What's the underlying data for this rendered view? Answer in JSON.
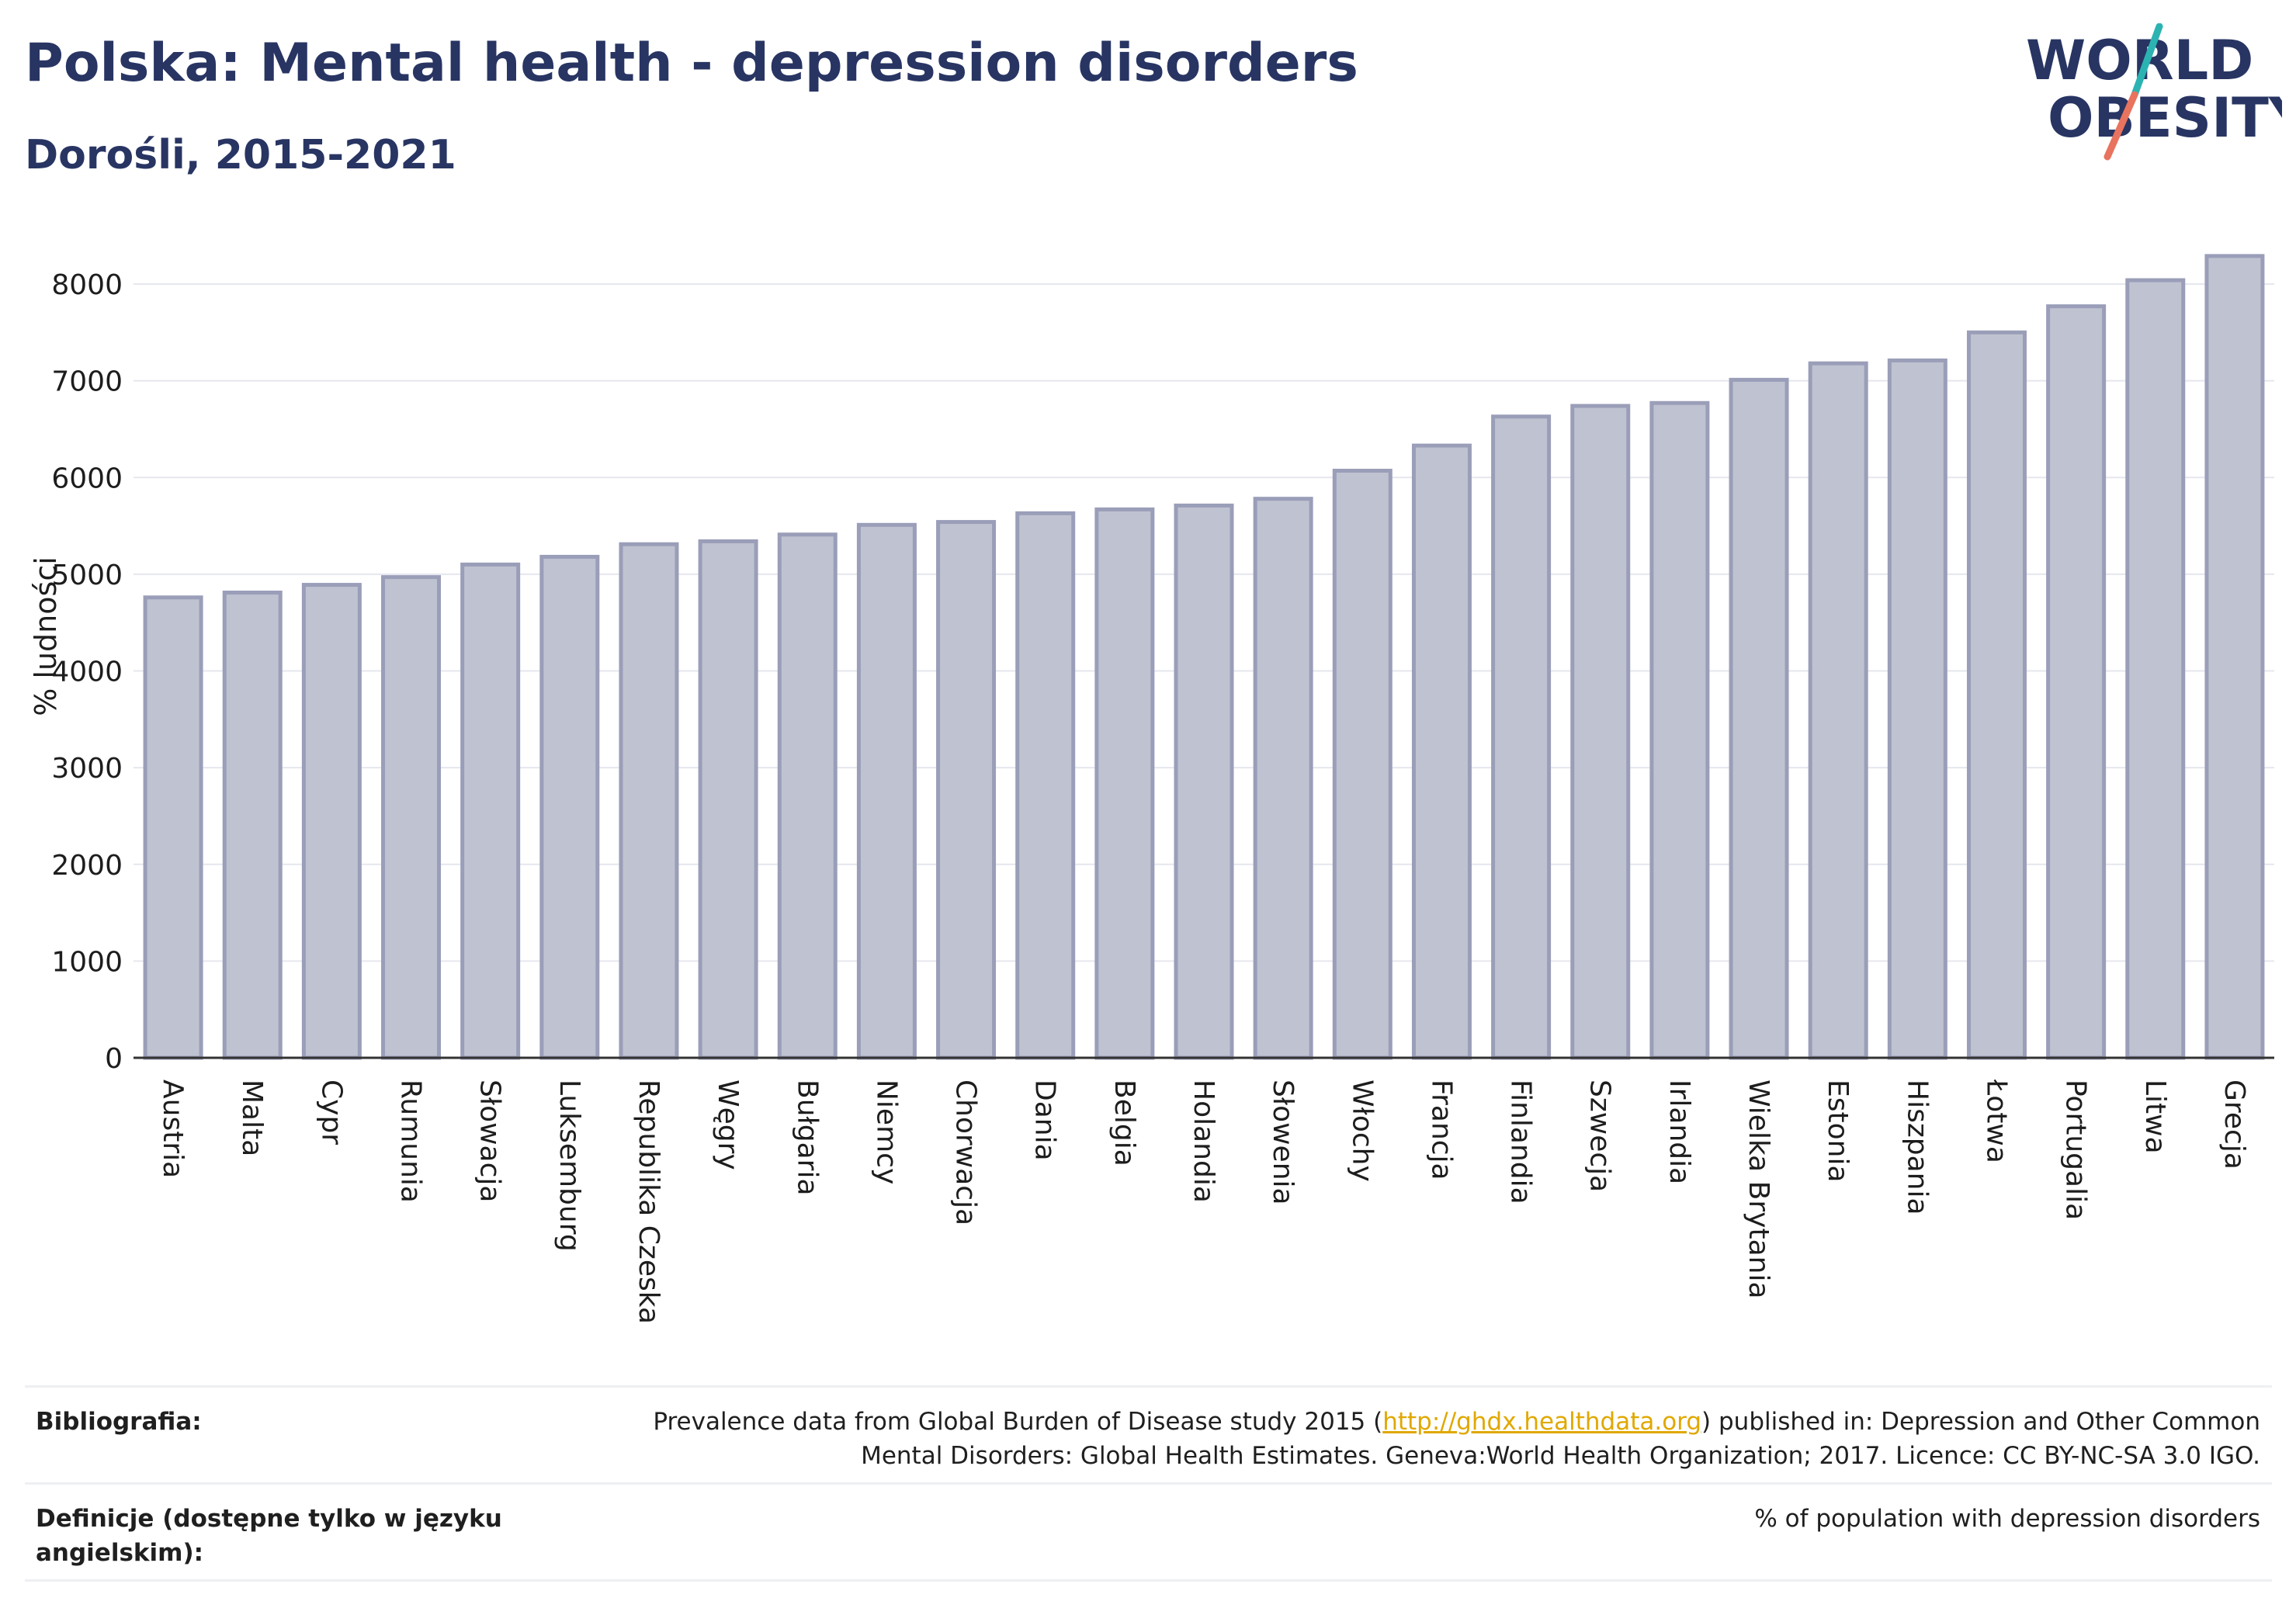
{
  "header": {
    "title": "Polska: Mental health - depression disorders",
    "subtitle": "Dorośli, 2015-2021",
    "logo_line1": "WORLD",
    "logo_line2": "OBESITY"
  },
  "chart_data": {
    "type": "bar",
    "title": "Polska: Mental health - depression disorders",
    "subtitle": "Dorośli, 2015-2021",
    "ylabel": "% ludności",
    "xlabel": "",
    "ylim": [
      0,
      8500
    ],
    "yticks": [
      "0",
      "1000",
      "2000",
      "3000",
      "4000",
      "5000",
      "6000",
      "7000",
      "8000"
    ],
    "grid": true,
    "categories": [
      "Austria",
      "Malta",
      "Cypr",
      "Rumunia",
      "Słowacja",
      "Luksemburg",
      "Republika Czeska",
      "Węgry",
      "Bułgaria",
      "Niemcy",
      "Chorwacja",
      "Dania",
      "Belgia",
      "Holandia",
      "Słowenia",
      "Włochy",
      "Francja",
      "Finlandia",
      "Szwecja",
      "Irlandia",
      "Wielka Brytania",
      "Estonia",
      "Hiszpania",
      "Łotwa",
      "Portugalia",
      "Litwa",
      "Grecja"
    ],
    "values": [
      4760,
      4810,
      4890,
      4970,
      5100,
      5180,
      5310,
      5340,
      5410,
      5510,
      5540,
      5630,
      5670,
      5710,
      5780,
      6070,
      6330,
      6630,
      6740,
      6770,
      7010,
      7180,
      7210,
      7500,
      7770,
      8040,
      8290
    ],
    "bar_color": "#bfc2d0",
    "bar_edge_color": "#9a9eb8"
  },
  "footer": {
    "bibliography_label": "Bibliografia:",
    "bibliography_text_before": "Prevalence data from Global Burden of Disease study 2015 (",
    "bibliography_link": "http://ghdx.healthdata.org",
    "bibliography_text_after": ") published in: Depression and Other Common",
    "bibliography_line2": "Mental Disorders: Global Health Estimates. Geneva:World Health Organization; 2017. Licence: CC BY-NC-SA 3.0 IGO.",
    "definitions_label": "Definicje (dostępne tylko w języku angielskim):",
    "definitions_text": "% of population with depression disorders"
  },
  "colors": {
    "title": "#283563",
    "logo_teal": "#2bb3b1",
    "logo_coral": "#e8735e",
    "link": "#e0a800"
  }
}
